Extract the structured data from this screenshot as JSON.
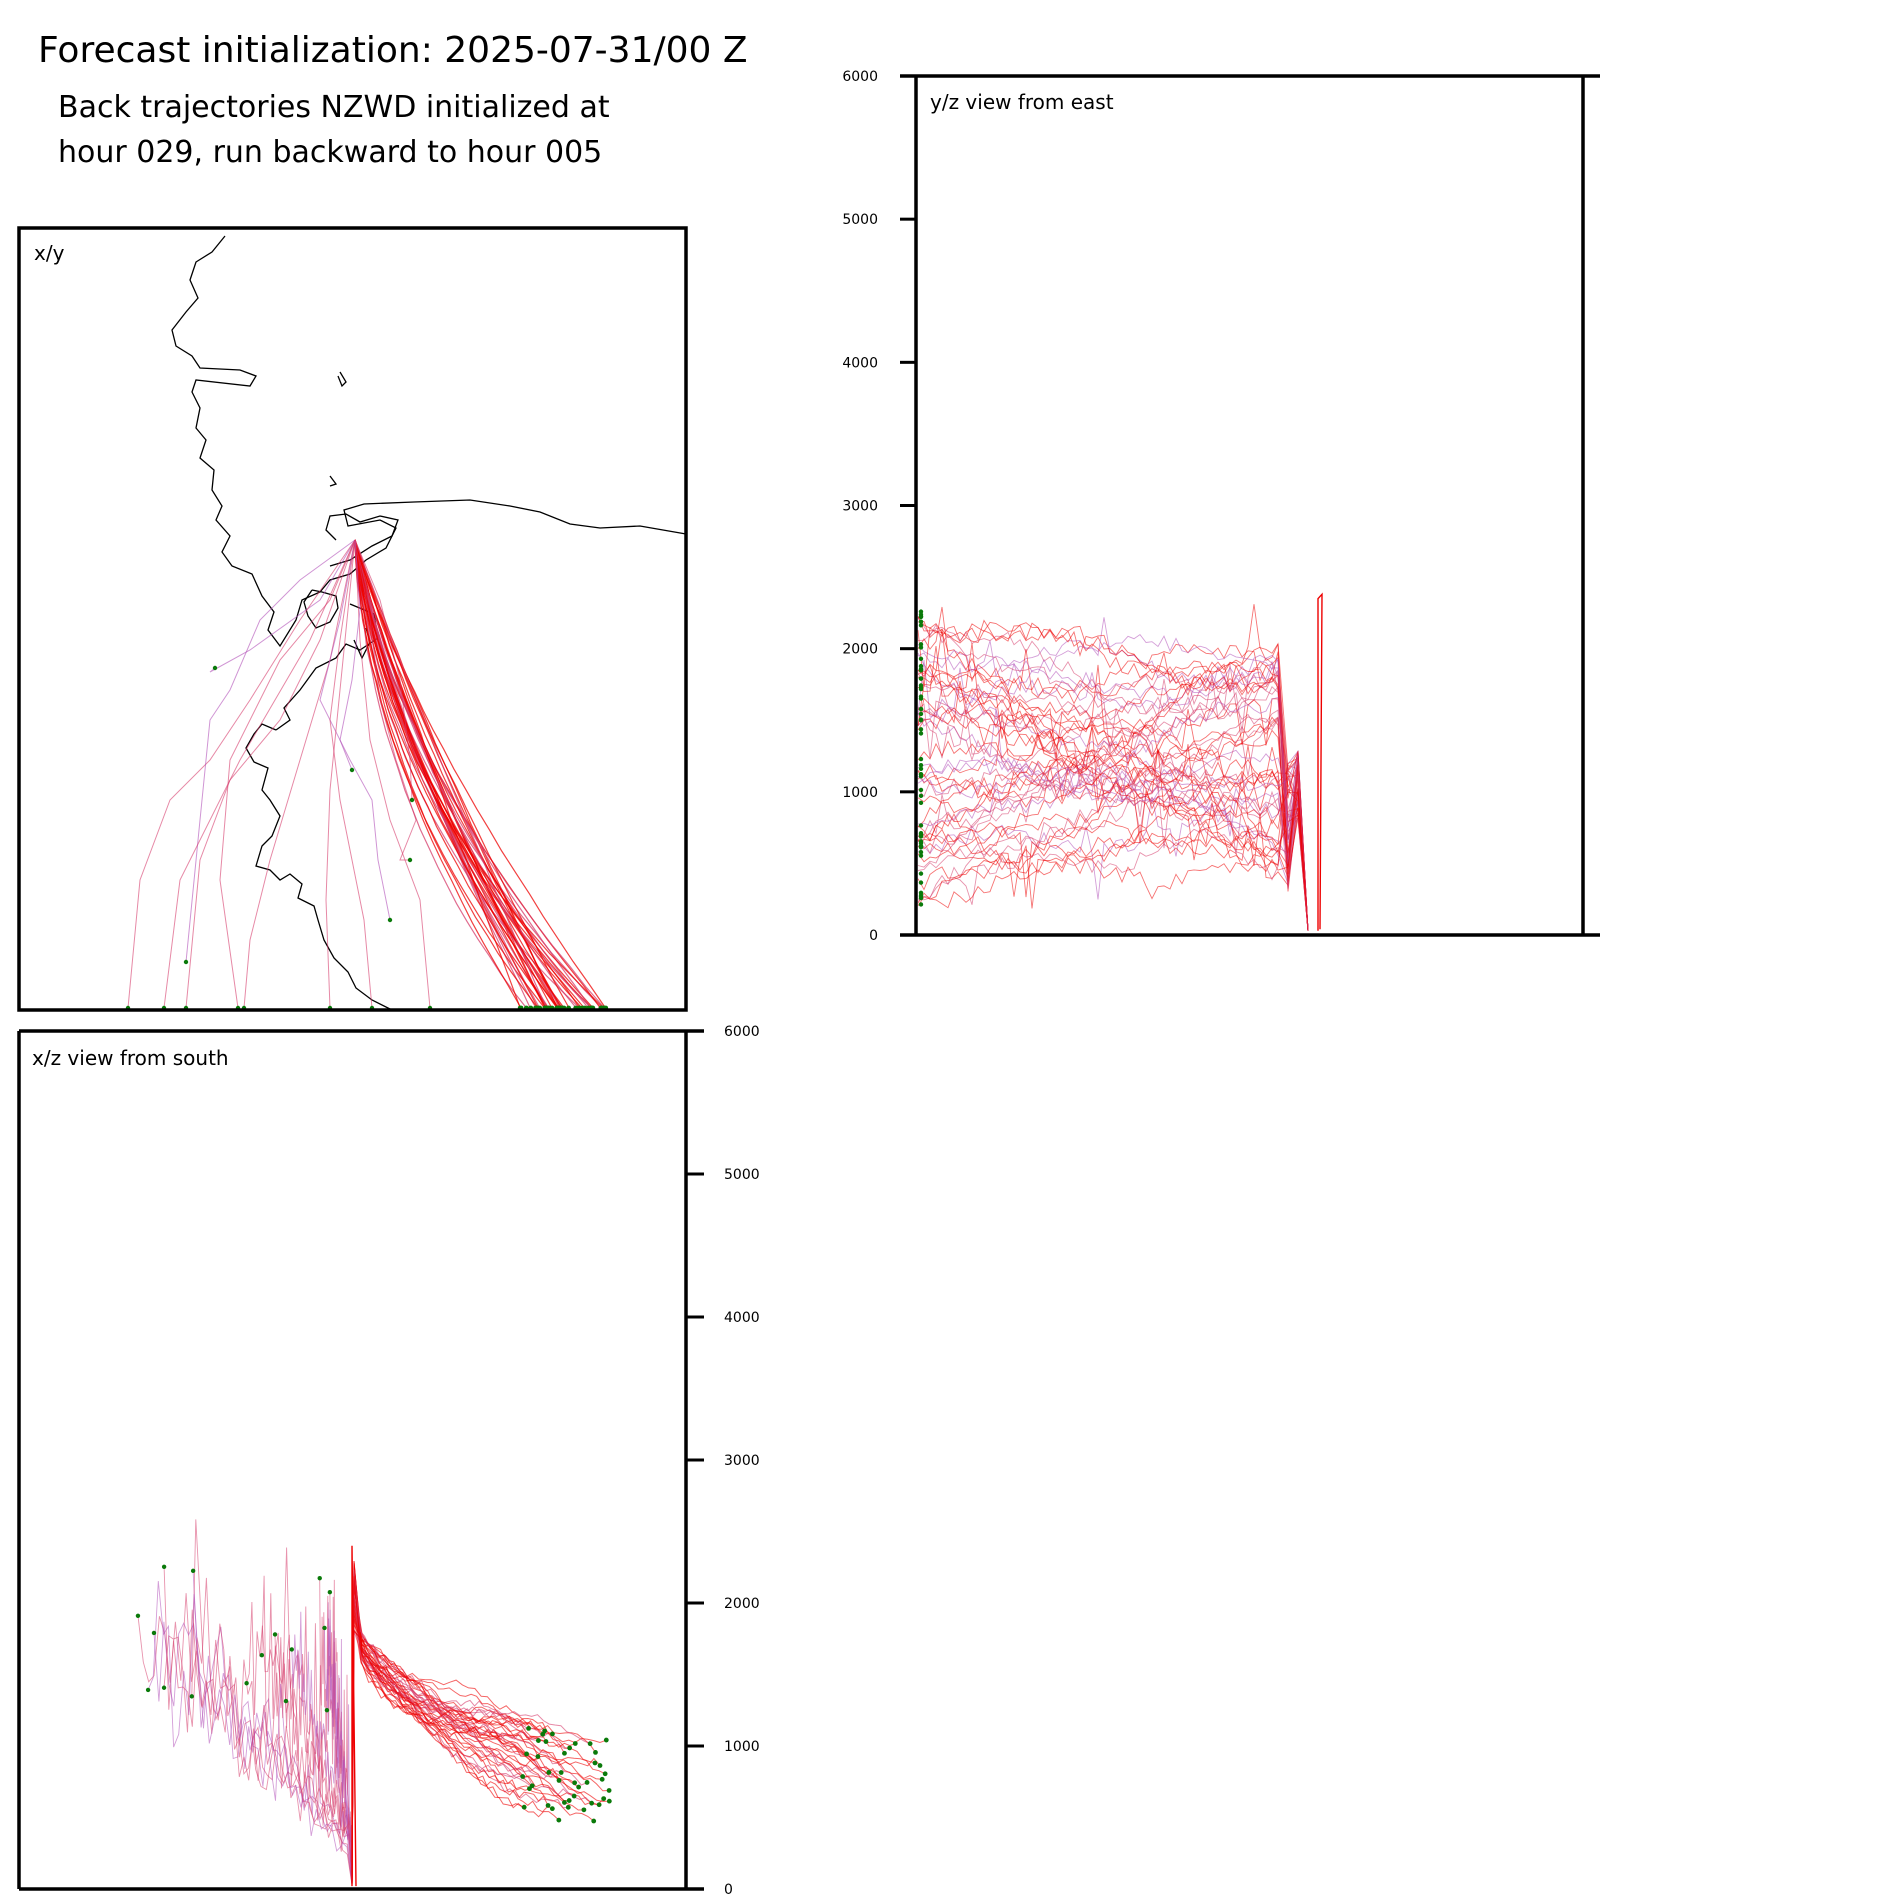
{
  "header": {
    "title": "Forecast initialization: 2025-07-31/00 Z",
    "subtitle_line1": "Back trajectories NZWD initialized at",
    "subtitle_line2": "hour 029, run backward to hour 005"
  },
  "colors": {
    "trajectory_main": "#ee0000",
    "trajectory_minor": "#d63b6a",
    "trajectory_purple": "#b04fb8",
    "endpoint": "#0a7a0a",
    "coastline": "#000000",
    "frame": "#000000"
  },
  "chart_data": [
    {
      "type": "line",
      "panel": "x/y",
      "title": "x/y",
      "description": "Plan-view back trajectories fanning south from the initialization point toward the bottom edge",
      "grid": false,
      "legend": "none"
    },
    {
      "type": "line",
      "panel": "y/z view from east",
      "title": "y/z view from east",
      "ylim": [
        0,
        6000
      ],
      "yticks": [
        0,
        1000,
        2000,
        3000,
        4000,
        5000,
        6000
      ],
      "ytick_labels": [
        "0",
        "1000",
        "2000",
        "3000",
        "4000",
        "5000",
        "6000"
      ],
      "ytick_side": "left",
      "grid": false,
      "legend": "none"
    },
    {
      "type": "line",
      "panel": "x/z view from south",
      "title": "x/z view from south",
      "ylim": [
        0,
        6000
      ],
      "yticks": [
        0,
        1000,
        2000,
        3000,
        4000,
        5000,
        6000
      ],
      "ytick_labels": [
        "0",
        "1000",
        "2000",
        "3000",
        "4000",
        "5000",
        "6000"
      ],
      "ytick_side": "right",
      "grid": false,
      "legend": "none"
    }
  ]
}
